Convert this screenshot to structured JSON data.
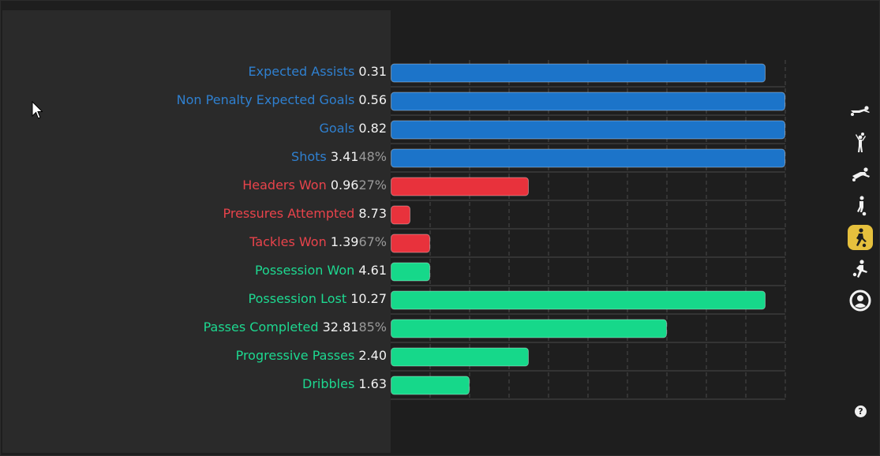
{
  "chart_data": {
    "type": "bar",
    "orientation": "horizontal",
    "categories": [
      "Expected Assists",
      "Non Penalty Expected Goals",
      "Goals",
      "Shots",
      "Headers Won",
      "Pressures Attempted",
      "Tackles Won",
      "Possession Won",
      "Possession Lost",
      "Passes Completed",
      "Progressive Passes",
      "Dribbles"
    ],
    "values": [
      "0.31",
      "0.56",
      "0.82",
      "3.41",
      "0.96",
      "8.73",
      "1.39",
      "4.61",
      "10.27",
      "32.81",
      "2.40",
      "1.63"
    ],
    "percentages": [
      "",
      "",
      "",
      "48%",
      "27%",
      "",
      "67%",
      "",
      "",
      "85%",
      "",
      ""
    ],
    "groups": [
      "attacking",
      "attacking",
      "attacking",
      "attacking",
      "defending",
      "defending",
      "defending",
      "possession",
      "possession",
      "possession",
      "possession",
      "possession"
    ],
    "percentile_ranks": [
      95,
      100,
      100,
      100,
      35,
      5,
      10,
      10,
      95,
      70,
      35,
      20
    ],
    "xlim": [
      0,
      100
    ],
    "grid_divisions": 10,
    "grid": true
  },
  "colors": {
    "attacking": "#1c74c9",
    "attacking_label": "#2f80d0",
    "defending": "#e8323c",
    "defending_label": "#e8434b",
    "possession": "#16d88a",
    "possession_label": "#1dd890",
    "grid": "#4a4a4a",
    "active_tool": "#e6c03d"
  },
  "toolbar": {
    "items": [
      {
        "icon": "player-sliding-icon",
        "active": false
      },
      {
        "icon": "player-heading-icon",
        "active": false
      },
      {
        "icon": "player-tackle-icon",
        "active": false
      },
      {
        "icon": "player-dribbling-icon",
        "active": false
      },
      {
        "icon": "player-running-icon",
        "active": true
      },
      {
        "icon": "player-kicking-icon",
        "active": false
      },
      {
        "icon": "user-circle-icon",
        "active": false
      }
    ],
    "help_label": "?"
  }
}
